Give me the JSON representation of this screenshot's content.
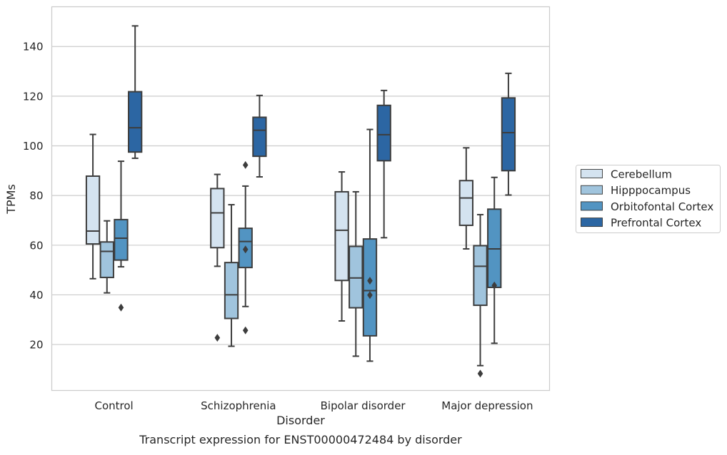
{
  "chart_data": {
    "type": "box",
    "xlabel": "Disorder",
    "ylabel": "TPMs",
    "caption": "Transcript expression for ENST00000472484 by disorder",
    "ylim": [
      1.5,
      156
    ],
    "yticks": [
      20,
      40,
      60,
      80,
      100,
      120,
      140
    ],
    "grid": "horizontal",
    "legend_position": "right",
    "categories": [
      "Control",
      "Schizophrenia",
      "Bipolar disorder",
      "Major depression"
    ],
    "series": [
      {
        "name": "Cerebellum",
        "color": "#d4e3f0",
        "boxes": [
          {
            "whislo": 46.5,
            "q1": 60.5,
            "med": 65.7,
            "q3": 87.8,
            "whishi": 104.6,
            "fliers": []
          },
          {
            "whislo": 51.5,
            "q1": 59.0,
            "med": 73.0,
            "q3": 82.8,
            "whishi": 88.5,
            "fliers": [
              22.7
            ]
          },
          {
            "whislo": 29.5,
            "q1": 45.8,
            "med": 66.0,
            "q3": 81.5,
            "whishi": 89.5,
            "fliers": []
          },
          {
            "whislo": 58.5,
            "q1": 68.0,
            "med": 79.0,
            "q3": 86.0,
            "whishi": 99.2,
            "fliers": []
          }
        ]
      },
      {
        "name": "Hipppocampus",
        "color": "#a0c4dd",
        "boxes": [
          {
            "whislo": 40.8,
            "q1": 47.0,
            "med": 57.5,
            "q3": 61.3,
            "whishi": 69.8,
            "fliers": []
          },
          {
            "whislo": 19.3,
            "q1": 30.5,
            "med": 40.0,
            "q3": 53.0,
            "whishi": 76.3,
            "fliers": []
          },
          {
            "whislo": 15.3,
            "q1": 34.8,
            "med": 46.8,
            "q3": 59.5,
            "whishi": 81.5,
            "fliers": []
          },
          {
            "whislo": 11.5,
            "q1": 35.8,
            "med": 51.5,
            "q3": 59.8,
            "whishi": 72.3,
            "fliers": [
              8.3
            ]
          }
        ]
      },
      {
        "name": "Orbitofontal Cortex",
        "color": "#5294c2",
        "boxes": [
          {
            "whislo": 51.3,
            "q1": 54.0,
            "med": 62.8,
            "q3": 70.3,
            "whishi": 93.8,
            "fliers": [
              34.9
            ]
          },
          {
            "whislo": 35.3,
            "q1": 51.0,
            "med": 61.5,
            "q3": 66.8,
            "whishi": 83.8,
            "fliers": [
              25.7,
              58.3,
              92.3
            ]
          },
          {
            "whislo": 13.3,
            "q1": 23.5,
            "med": 41.7,
            "q3": 62.5,
            "whishi": 106.6,
            "fliers": [
              39.9,
              45.7
            ]
          },
          {
            "whislo": 20.5,
            "q1": 43.0,
            "med": 58.5,
            "q3": 74.5,
            "whishi": 87.3,
            "fliers": [
              43.8
            ]
          }
        ]
      },
      {
        "name": "Prefrontal Cortex",
        "color": "#2c66a3",
        "boxes": [
          {
            "whislo": 95.0,
            "q1": 97.5,
            "med": 107.3,
            "q3": 121.8,
            "whishi": 148.3,
            "fliers": []
          },
          {
            "whislo": 87.5,
            "q1": 95.8,
            "med": 106.3,
            "q3": 111.5,
            "whishi": 120.3,
            "fliers": []
          },
          {
            "whislo": 63.0,
            "q1": 94.0,
            "med": 104.5,
            "q3": 116.3,
            "whishi": 122.3,
            "fliers": []
          },
          {
            "whislo": 80.2,
            "q1": 90.0,
            "med": 105.3,
            "q3": 119.3,
            "whishi": 129.2,
            "fliers": []
          }
        ]
      }
    ]
  }
}
